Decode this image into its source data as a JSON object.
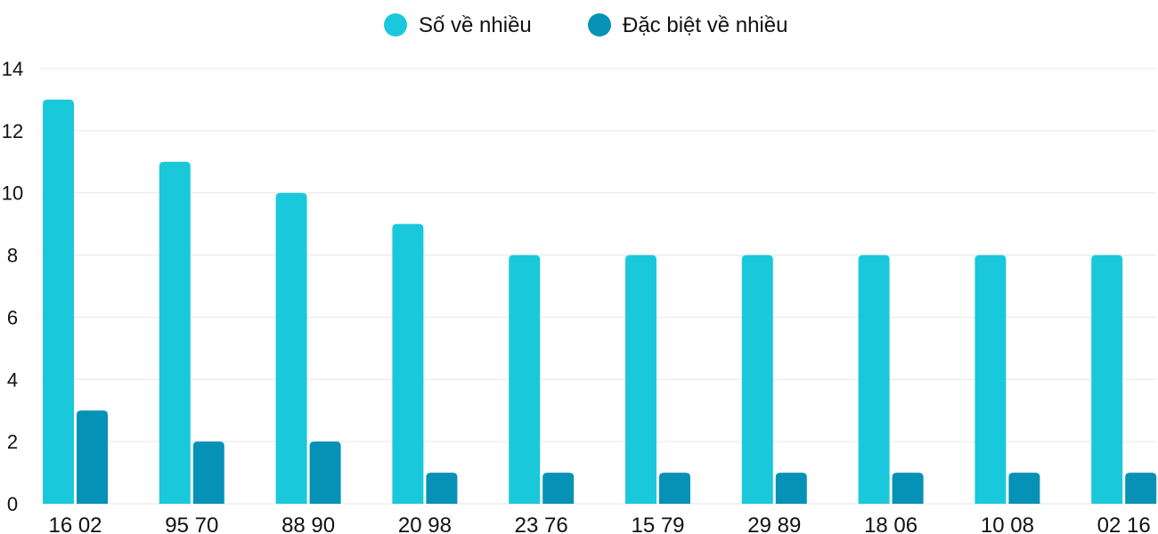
{
  "chart_data": {
    "type": "bar",
    "categories": [
      "16 02",
      "95 70",
      "88 90",
      "20 98",
      "23 76",
      "15 79",
      "29 89",
      "18 06",
      "10 08",
      "02 16"
    ],
    "series": [
      {
        "name": "Số về nhiều",
        "color": "#1ac8dc",
        "values": [
          13,
          11,
          10,
          9,
          8,
          8,
          8,
          8,
          8,
          8
        ]
      },
      {
        "name": "Đặc biệt về nhiều",
        "color": "#0592b6",
        "values": [
          3,
          2,
          2,
          1,
          1,
          1,
          1,
          1,
          1,
          1
        ]
      }
    ],
    "ylim": [
      0,
      14
    ],
    "yticks": [
      "0",
      "2",
      "4",
      "6",
      "8",
      "10",
      "12",
      "14"
    ],
    "grid": true,
    "legend_position": "top-center"
  }
}
